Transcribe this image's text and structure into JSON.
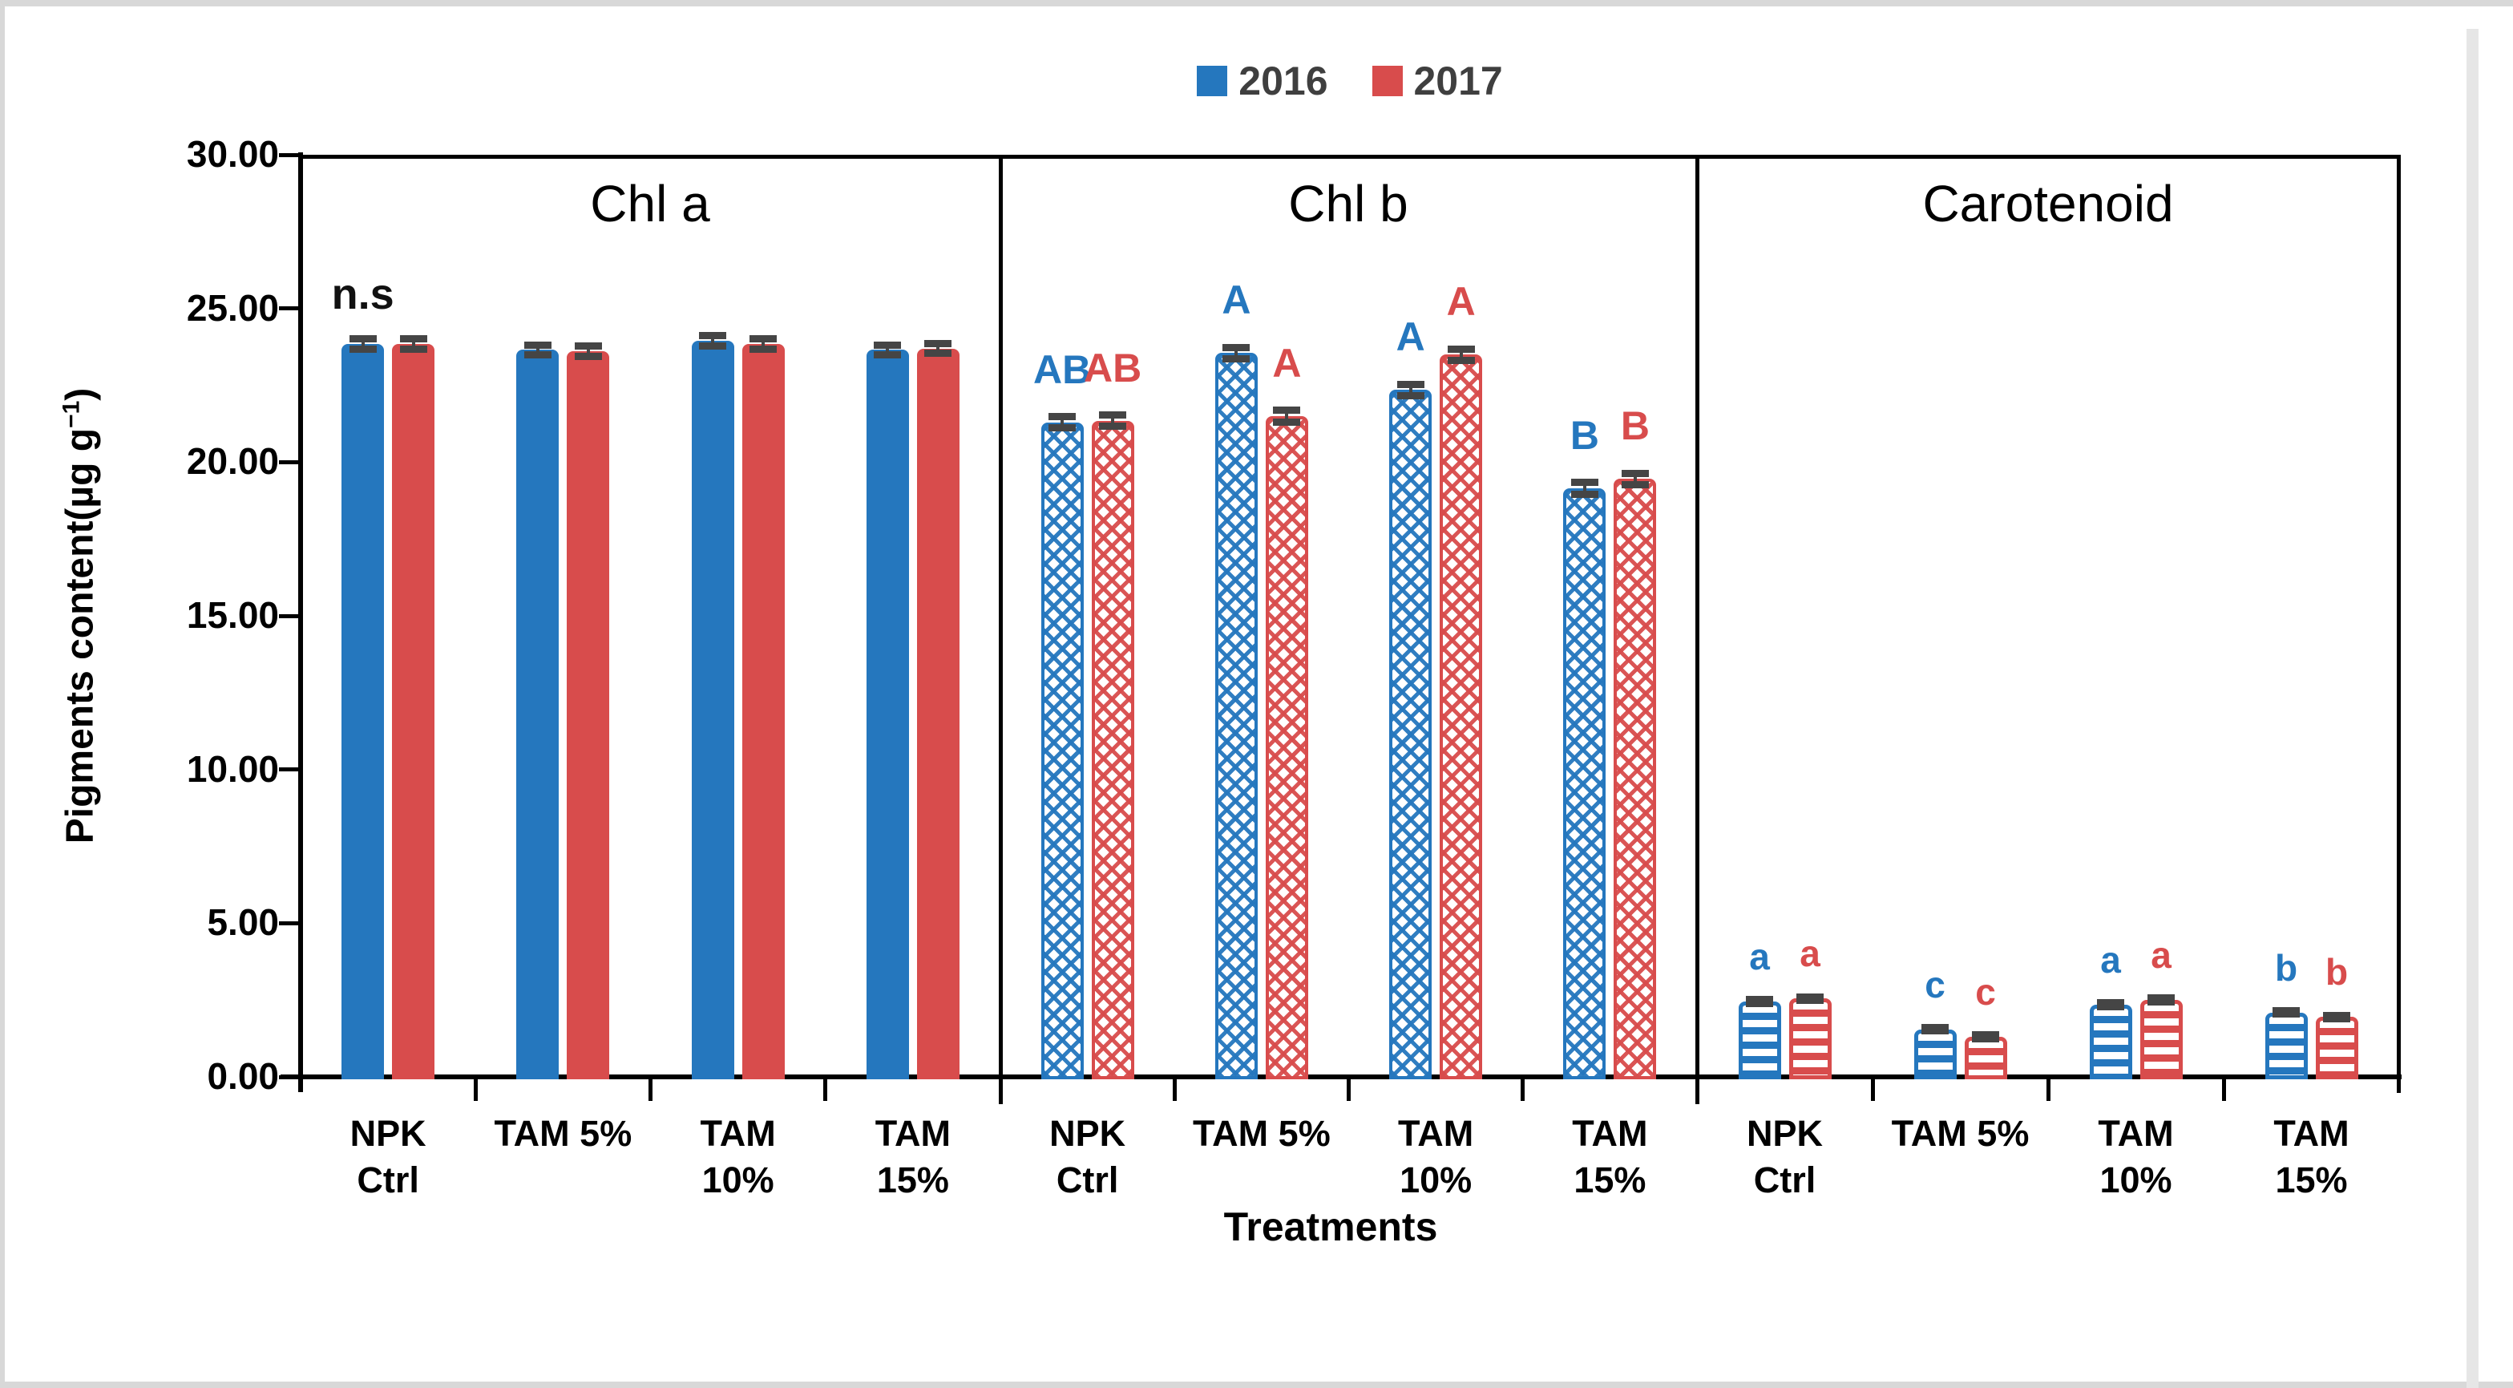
{
  "legend": {
    "items": [
      {
        "label": "2016",
        "color": "#2577BE"
      },
      {
        "label": "2017",
        "color": "#D84C4C"
      }
    ]
  },
  "axis": {
    "y_title_main": "Pigments content(µg g",
    "y_title_sup": "−1",
    "y_title_end": ")",
    "x_title": "Treatments",
    "y_ticks": [
      {
        "label": "30.00",
        "value": 30
      },
      {
        "label": "25.00",
        "value": 25
      },
      {
        "label": "20.00",
        "value": 20
      },
      {
        "label": "15.00",
        "value": 15
      },
      {
        "label": "10.00",
        "value": 10
      },
      {
        "label": "5.00",
        "value": 5
      },
      {
        "label": "0.00",
        "value": 0
      }
    ]
  },
  "chart_data": {
    "type": "bar",
    "title": "",
    "xlabel": "Treatments",
    "ylabel": "Pigments content(µg g⁻¹)",
    "ylim": [
      0,
      30
    ],
    "grid": false,
    "legend_position": "top-center",
    "categories": [
      "NPK\nCtrl",
      "TAM 5%",
      "TAM\n10%",
      "TAM\n15%"
    ],
    "series_names": [
      "2016",
      "2017"
    ],
    "series_colors": {
      "2016": "#2577BE",
      "2017": "#D84C4C"
    },
    "error_cap_color": "#454545",
    "panels": [
      {
        "title": "Chl a",
        "pattern": "solid",
        "err": 0.18,
        "note": {
          "text": "n.s",
          "group": 0,
          "series": 0
        },
        "series": [
          {
            "name": "2016",
            "values": [
              23.85,
              23.65,
              23.95,
              23.65
            ],
            "letters": [
              "",
              "",
              "",
              ""
            ]
          },
          {
            "name": "2017",
            "values": [
              23.85,
              23.6,
              23.85,
              23.7
            ],
            "letters": [
              "",
              "",
              "",
              ""
            ]
          }
        ]
      },
      {
        "title": "Chl b",
        "pattern": "crosshatch",
        "err": 0.2,
        "series": [
          {
            "name": "2016",
            "values": [
              21.3,
              23.55,
              22.35,
              19.15
            ],
            "letters": [
              "AB",
              "A",
              "A",
              "B"
            ]
          },
          {
            "name": "2017",
            "values": [
              21.35,
              21.5,
              23.5,
              19.45
            ],
            "letters": [
              "AB",
              "A",
              "A",
              "B"
            ]
          }
        ]
      },
      {
        "title": "Carotenoid",
        "pattern": "hstripe",
        "err": 0.07,
        "series": [
          {
            "name": "2016",
            "values": [
              2.45,
              1.55,
              2.35,
              2.1
            ],
            "letters": [
              "a",
              "c",
              "a",
              "b"
            ]
          },
          {
            "name": "2017",
            "values": [
              2.55,
              1.3,
              2.5,
              1.95
            ],
            "letters": [
              "a",
              "c",
              "a",
              "b"
            ]
          }
        ]
      }
    ]
  }
}
